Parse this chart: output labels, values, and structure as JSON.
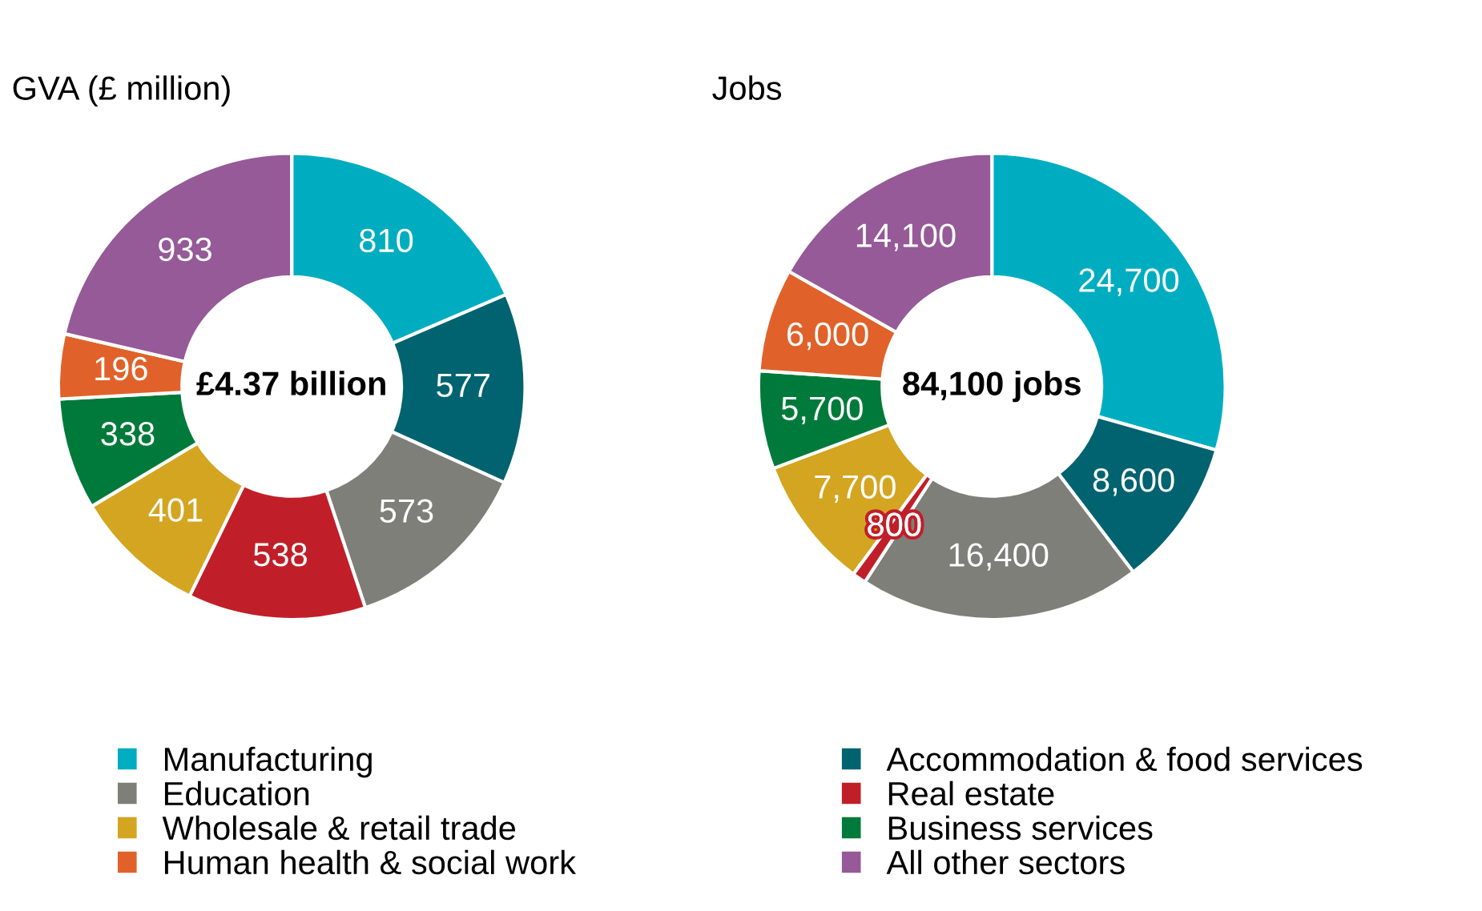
{
  "chart_data": {
    "type": "donut",
    "categories": [
      "Manufacturing",
      "Accommodation & food services",
      "Education",
      "Real estate",
      "Wholesale & retail trade",
      "Business services",
      "Human health & social work",
      "All other sectors"
    ],
    "colors": [
      "#00adc0",
      "#00636f",
      "#7e7f79",
      "#c01f29",
      "#d4a520",
      "#007a3a",
      "#e0622a",
      "#955a97"
    ],
    "series": [
      {
        "name": "GVA (£ million)",
        "values": [
          810,
          577,
          573,
          538,
          401,
          338,
          196,
          933
        ],
        "value_labels": [
          "810",
          "577",
          "573",
          "538",
          "401",
          "338",
          "196",
          "933"
        ]
      },
      {
        "name": "Jobs",
        "values": [
          24700,
          8600,
          16400,
          800,
          7700,
          5700,
          6000,
          14100
        ],
        "value_labels": [
          "24,700",
          "8,600",
          "16,400",
          "800",
          "7,700",
          "5,700",
          "6,000",
          "14,100"
        ]
      }
    ],
    "annotations": [
      "£4.37 billion",
      "84,100 jobs"
    ],
    "legend": "bottom"
  }
}
